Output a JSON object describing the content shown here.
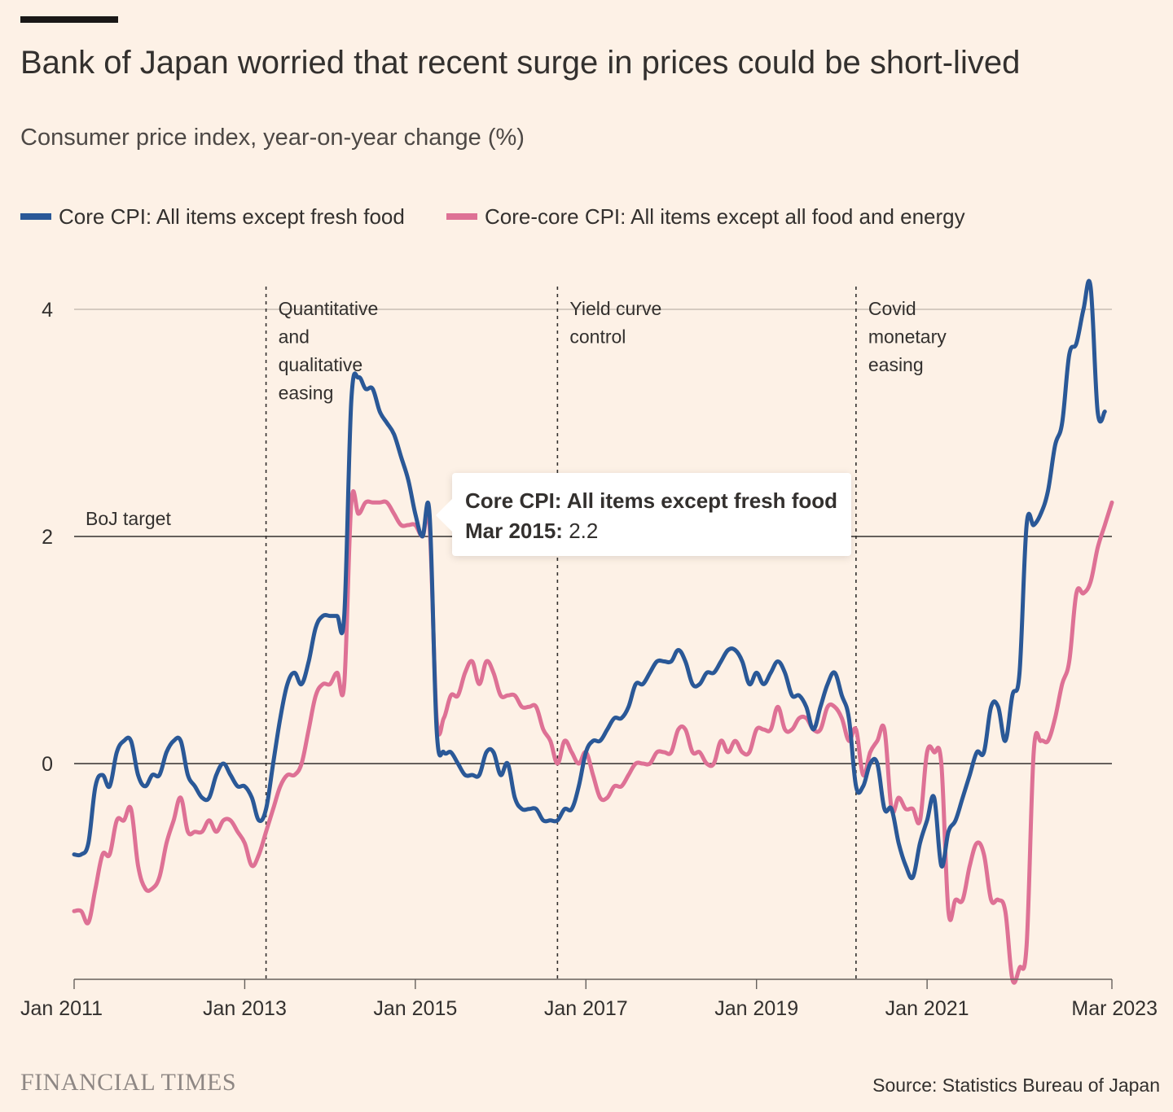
{
  "title": "Bank of Japan worried that recent surge in prices could be short-lived",
  "subtitle": "Consumer price index, year-on-year change (%)",
  "brand": "FINANCIAL TIMES",
  "source": "Source: Statistics Bureau of Japan",
  "colors": {
    "background": "#fdf1e6",
    "core": "#2a5897",
    "core_core": "#de7195",
    "text": "#33302e"
  },
  "tooltip": {
    "series": "Core CPI: All items except fresh food",
    "date": "Mar 2015:",
    "value": "2.2"
  },
  "chart_data": {
    "type": "line",
    "title": "Bank of Japan worried that recent surge in prices could be short-lived",
    "subtitle": "Consumer price index, year-on-year change (%)",
    "ylim": [
      -1.9,
      4.3
    ],
    "yticks": [
      0,
      2,
      4
    ],
    "xlim": [
      "2011-01",
      "2023-03"
    ],
    "xticks": [
      {
        "x": "2011-01",
        "label": "Jan 2011"
      },
      {
        "x": "2013-01",
        "label": "Jan 2013"
      },
      {
        "x": "2015-01",
        "label": "Jan 2015"
      },
      {
        "x": "2017-01",
        "label": "Jan 2017"
      },
      {
        "x": "2019-01",
        "label": "Jan 2019"
      },
      {
        "x": "2021-01",
        "label": "Jan 2021"
      },
      {
        "x": "2023-03",
        "label": "Mar 2023"
      }
    ],
    "legend": "top-left",
    "reference_line": {
      "y": 2,
      "label": "BoJ target"
    },
    "events": [
      {
        "x": "2013-04",
        "label": [
          "Quantitative",
          "and",
          "qualitative",
          "easing"
        ]
      },
      {
        "x": "2016-09",
        "label": [
          "Yield curve",
          "control"
        ]
      },
      {
        "x": "2020-03",
        "label": [
          "Covid",
          "monetary",
          "easing"
        ]
      }
    ],
    "series": [
      {
        "name": "Core CPI: All items except fresh food",
        "color": "#2a5897",
        "start": "2011-01",
        "values": [
          -0.8,
          -0.8,
          -0.7,
          -0.2,
          -0.1,
          -0.2,
          0.1,
          0.2,
          0.2,
          -0.1,
          -0.2,
          -0.1,
          -0.1,
          0.1,
          0.2,
          0.2,
          -0.1,
          -0.2,
          -0.3,
          -0.3,
          -0.1,
          0.0,
          -0.1,
          -0.2,
          -0.2,
          -0.3,
          -0.5,
          -0.4,
          0.0,
          0.4,
          0.7,
          0.8,
          0.7,
          0.9,
          1.2,
          1.3,
          1.3,
          1.3,
          1.3,
          3.2,
          3.4,
          3.3,
          3.3,
          3.1,
          3.0,
          2.9,
          2.7,
          2.5,
          2.2,
          2.0,
          2.2,
          0.3,
          0.1,
          0.1,
          0.0,
          -0.1,
          -0.1,
          -0.1,
          0.1,
          0.1,
          -0.1,
          0.0,
          -0.3,
          -0.4,
          -0.4,
          -0.4,
          -0.5,
          -0.5,
          -0.5,
          -0.4,
          -0.4,
          -0.2,
          0.1,
          0.2,
          0.2,
          0.3,
          0.4,
          0.4,
          0.5,
          0.7,
          0.7,
          0.8,
          0.9,
          0.9,
          0.9,
          1.0,
          0.9,
          0.7,
          0.7,
          0.8,
          0.8,
          0.9,
          1.0,
          1.0,
          0.9,
          0.7,
          0.8,
          0.7,
          0.8,
          0.9,
          0.8,
          0.6,
          0.6,
          0.5,
          0.3,
          0.5,
          0.7,
          0.8,
          0.6,
          0.4,
          -0.2,
          -0.2,
          0.0,
          0.0,
          -0.4,
          -0.4,
          -0.7,
          -0.9,
          -1.0,
          -0.7,
          -0.5,
          -0.3,
          -0.9,
          -0.6,
          -0.5,
          -0.3,
          -0.1,
          0.1,
          0.1,
          0.5,
          0.5,
          0.2,
          0.6,
          0.8,
          2.1,
          2.1,
          2.2,
          2.4,
          2.8,
          3.0,
          3.6,
          3.7,
          4.0,
          4.2,
          3.1,
          3.1
        ]
      },
      {
        "name": "Core-core CPI: All items except all food and energy",
        "color": "#de7195",
        "start": "2011-01",
        "values": [
          -1.3,
          -1.3,
          -1.4,
          -1.1,
          -0.8,
          -0.8,
          -0.5,
          -0.5,
          -0.4,
          -0.9,
          -1.1,
          -1.1,
          -1.0,
          -0.7,
          -0.5,
          -0.3,
          -0.6,
          -0.6,
          -0.6,
          -0.5,
          -0.6,
          -0.5,
          -0.5,
          -0.6,
          -0.7,
          -0.9,
          -0.8,
          -0.6,
          -0.4,
          -0.2,
          -0.1,
          -0.1,
          0.0,
          0.3,
          0.6,
          0.7,
          0.7,
          0.8,
          0.7,
          2.3,
          2.2,
          2.3,
          2.3,
          2.3,
          2.3,
          2.2,
          2.1,
          2.1,
          2.1,
          2.0,
          2.1,
          0.4,
          0.4,
          0.6,
          0.6,
          0.8,
          0.9,
          0.7,
          0.9,
          0.8,
          0.6,
          0.6,
          0.6,
          0.5,
          0.5,
          0.5,
          0.3,
          0.2,
          0.0,
          0.2,
          0.1,
          0.0,
          0.1,
          -0.1,
          -0.3,
          -0.3,
          -0.2,
          -0.2,
          -0.1,
          0.0,
          0.0,
          0.0,
          0.1,
          0.1,
          0.1,
          0.3,
          0.3,
          0.1,
          0.1,
          0.0,
          0.0,
          0.2,
          0.1,
          0.2,
          0.1,
          0.1,
          0.3,
          0.3,
          0.3,
          0.5,
          0.3,
          0.3,
          0.4,
          0.4,
          0.3,
          0.3,
          0.5,
          0.5,
          0.4,
          0.2,
          0.3,
          -0.1,
          0.1,
          0.2,
          0.3,
          -0.4,
          -0.3,
          -0.4,
          -0.4,
          -0.5,
          0.1,
          0.1,
          0.0,
          -1.3,
          -1.2,
          -1.2,
          -0.9,
          -0.7,
          -0.8,
          -1.2,
          -1.2,
          -1.3,
          -1.9,
          -1.8,
          -1.6,
          0.1,
          0.2,
          0.2,
          0.4,
          0.7,
          0.9,
          1.5,
          1.5,
          1.6,
          1.9,
          2.1,
          2.3
        ]
      }
    ]
  }
}
